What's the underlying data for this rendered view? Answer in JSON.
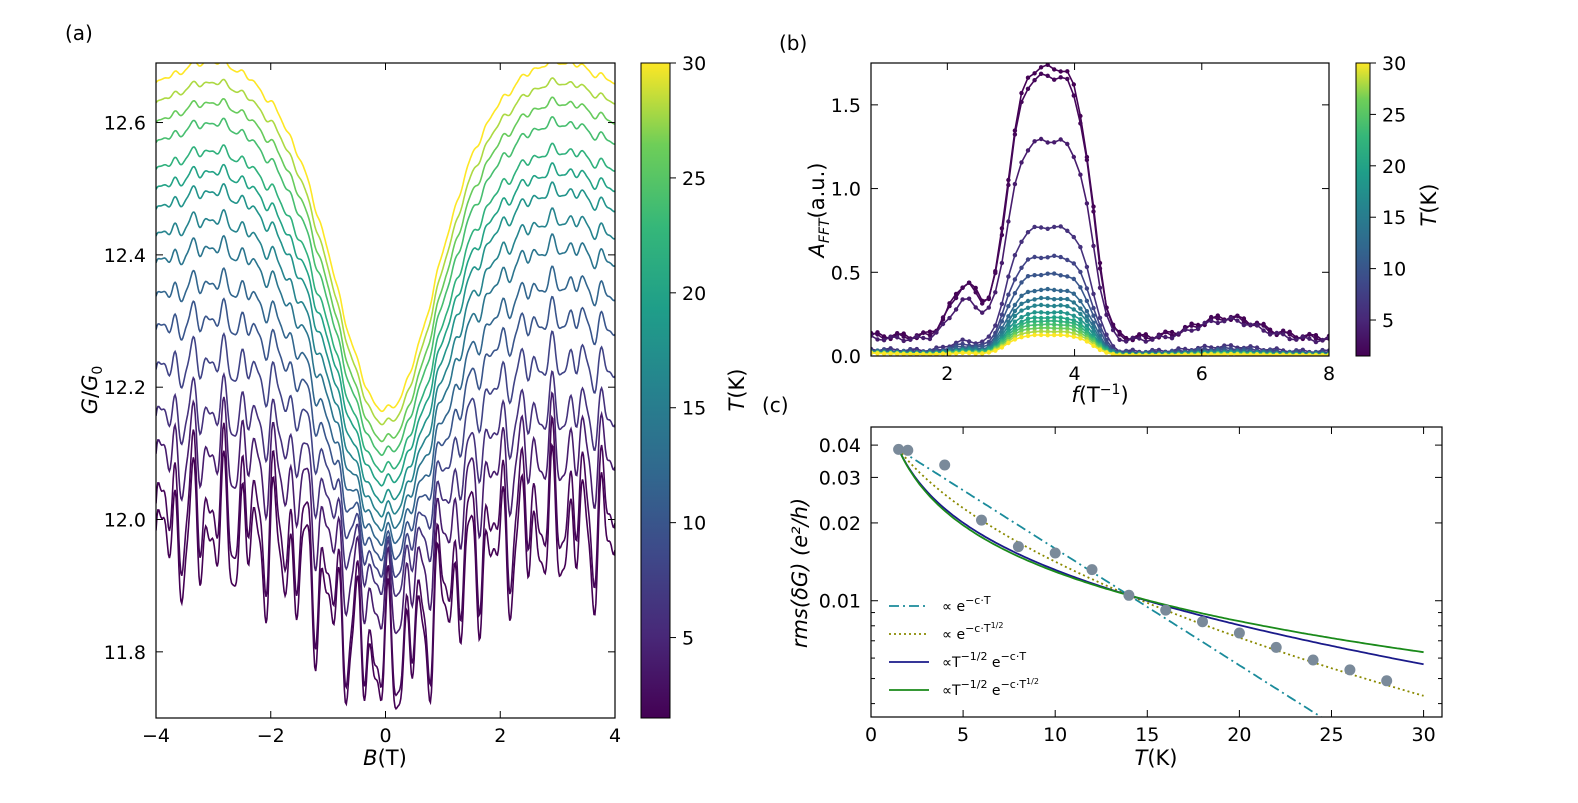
{
  "chart_data": [
    {
      "panel": "(a)",
      "type": "line",
      "xlabel_var": "B",
      "xlabel_unit": "(T)",
      "ylabel_var": "G",
      "ylabel_sub": "0",
      "xlim": [
        -4,
        4
      ],
      "ylim": [
        11.7,
        12.69
      ],
      "xticks": [
        -4,
        -2,
        0,
        2,
        4
      ],
      "xtick_labels": [
        "−4",
        "−2",
        "0",
        "2",
        "4"
      ],
      "yticks": [
        11.8,
        12.0,
        12.2,
        12.4,
        12.6
      ],
      "ytick_labels": [
        "11.8",
        "12.0",
        "12.2",
        "12.4",
        "12.6"
      ],
      "colorbar": {
        "label_var": "T",
        "label_unit": "(K)",
        "range": [
          1.5,
          30
        ],
        "ticks": [
          5,
          10,
          15,
          20,
          25,
          30
        ],
        "tick_labels": [
          "5",
          "10",
          "15",
          "20",
          "25",
          "30"
        ]
      },
      "series": [
        {
          "T": 1.5,
          "center": 11.78,
          "edge": 11.96,
          "amp": 0.09
        },
        {
          "T": 2,
          "center": 11.8,
          "edge": 12.0,
          "amp": 0.09
        },
        {
          "T": 4,
          "center": 11.87,
          "edge": 12.08,
          "amp": 0.06
        },
        {
          "T": 6,
          "center": 11.91,
          "edge": 12.14,
          "amp": 0.04
        },
        {
          "T": 8,
          "center": 11.93,
          "edge": 12.21,
          "amp": 0.03
        },
        {
          "T": 10,
          "center": 11.95,
          "edge": 12.27,
          "amp": 0.022
        },
        {
          "T": 12,
          "center": 11.97,
          "edge": 12.32,
          "amp": 0.017
        },
        {
          "T": 14,
          "center": 11.99,
          "edge": 12.37,
          "amp": 0.014
        },
        {
          "T": 16,
          "center": 12.01,
          "edge": 12.41,
          "amp": 0.012
        },
        {
          "T": 18,
          "center": 12.03,
          "edge": 12.45,
          "amp": 0.01
        },
        {
          "T": 20,
          "center": 12.055,
          "edge": 12.48,
          "amp": 0.009
        },
        {
          "T": 22,
          "center": 12.075,
          "edge": 12.51,
          "amp": 0.008
        },
        {
          "T": 24,
          "center": 12.1,
          "edge": 12.55,
          "amp": 0.007
        },
        {
          "T": 26,
          "center": 12.12,
          "edge": 12.58,
          "amp": 0.006
        },
        {
          "T": 28,
          "center": 12.145,
          "edge": 12.61,
          "amp": 0.005
        },
        {
          "T": 30,
          "center": 12.165,
          "edge": 12.64,
          "amp": 0.005
        }
      ]
    },
    {
      "panel": "(b)",
      "type": "line",
      "xlabel_var": "f",
      "xlabel_unit": "(T",
      "xlabel_sup": "−1",
      "xlabel_close": ")",
      "ylabel_var": "A",
      "ylabel_sub": "FFT",
      "ylabel_unit": "(a.u.)",
      "xlim": [
        0.8,
        8
      ],
      "ylim": [
        0,
        1.75
      ],
      "xticks": [
        2,
        4,
        6,
        8
      ],
      "xtick_labels": [
        "2",
        "4",
        "6",
        "8"
      ],
      "yticks": [
        0,
        0.5,
        1.0,
        1.5
      ],
      "ytick_labels": [
        "0.0",
        "0.5",
        "1.0",
        "1.5"
      ],
      "colorbar": {
        "label_var": "T",
        "label_unit": "(K)",
        "range": [
          1.5,
          30
        ],
        "ticks": [
          5,
          10,
          15,
          20,
          25,
          30
        ],
        "tick_labels": [
          "5",
          "10",
          "15",
          "20",
          "25",
          "30"
        ]
      },
      "series": [
        {
          "T": 1.5,
          "peak": 1.61
        },
        {
          "T": 2,
          "peak": 1.56
        },
        {
          "T": 4,
          "peak": 1.19
        },
        {
          "T": 6,
          "peak": 0.74
        },
        {
          "T": 8,
          "peak": 0.57
        },
        {
          "T": 10,
          "peak": 0.47
        },
        {
          "T": 12,
          "peak": 0.38
        },
        {
          "T": 14,
          "peak": 0.33
        },
        {
          "T": 16,
          "peak": 0.29
        },
        {
          "T": 18,
          "peak": 0.25
        },
        {
          "T": 20,
          "peak": 0.22
        },
        {
          "T": 22,
          "peak": 0.2
        },
        {
          "T": 24,
          "peak": 0.18
        },
        {
          "T": 26,
          "peak": 0.16
        },
        {
          "T": 28,
          "peak": 0.14
        },
        {
          "T": 30,
          "peak": 0.12
        }
      ]
    },
    {
      "panel": "(c)",
      "type": "scatter",
      "xlabel_var": "T",
      "xlabel_unit": "(K)",
      "ylabel_text": "rms(δG) (e²/h)",
      "yscale": "log",
      "xlim": [
        0,
        31
      ],
      "ylim": [
        0.00355,
        0.047
      ],
      "xticks": [
        0,
        5,
        10,
        15,
        20,
        25,
        30
      ],
      "xtick_labels": [
        "0",
        "5",
        "10",
        "15",
        "20",
        "25",
        "30"
      ],
      "yticks": [
        0.01,
        0.02,
        0.03,
        0.04
      ],
      "ytick_labels": [
        "0.01",
        "0.02",
        "0.03",
        "0.04"
      ],
      "points": {
        "x": [
          1.5,
          2,
          4,
          6,
          8,
          10,
          12,
          14,
          16,
          18,
          20,
          22,
          24,
          26,
          28
        ],
        "y": [
          0.0385,
          0.0382,
          0.0335,
          0.0205,
          0.0162,
          0.0153,
          0.0132,
          0.0105,
          0.0092,
          0.0083,
          0.0075,
          0.0066,
          0.0059,
          0.0054,
          0.0049
        ]
      },
      "fits": [
        {
          "name": "exp",
          "legend": "∝ e",
          "legend_sup": "−c·T",
          "color": "#1a8b9b",
          "dash": "10,4,2,4"
        },
        {
          "name": "exp_sqrt",
          "legend": "∝ e",
          "legend_sup": "−c·T",
          "legend_sup2": "1/2",
          "color": "#8a8a00",
          "dash": "2,3"
        },
        {
          "name": "pow_exp",
          "legend": "∝T",
          "legend_sup": "−1/2",
          "legend_mid": "e",
          "legend_sup2": "−c·T",
          "color": "#1a1a8a",
          "dash": ""
        },
        {
          "name": "pow_exp_sqrt",
          "legend": "∝T",
          "legend_sup": "−1/2",
          "legend_mid": "e",
          "legend_sup2": "−c·T",
          "legend_sup3": "1/2",
          "color": "#1a8a1a",
          "dash": ""
        }
      ]
    }
  ]
}
